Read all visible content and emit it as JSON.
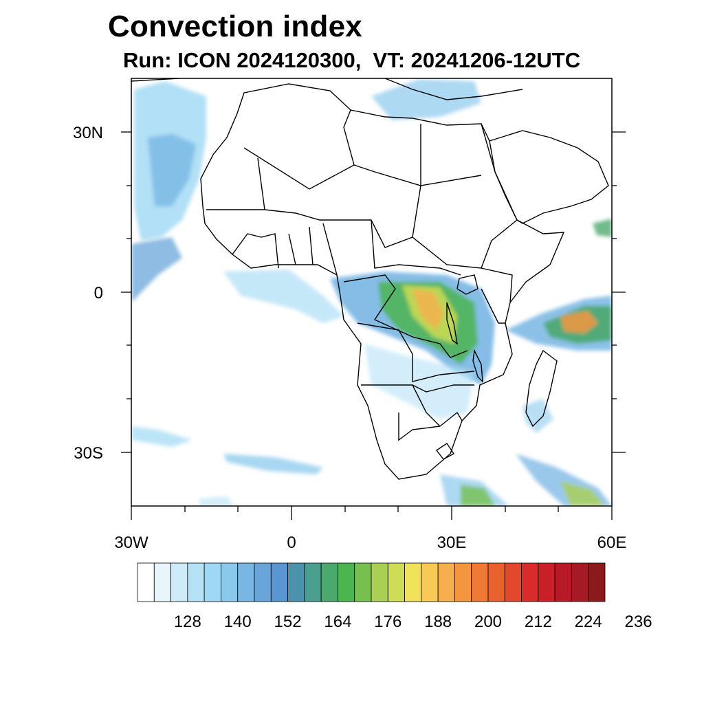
{
  "header": {
    "title": "Convection index",
    "subtitle": "Run: ICON 2024120300,  VT: 20241206-12UTC"
  },
  "map": {
    "lon_range": [
      -30,
      60
    ],
    "lat_range": [
      -40,
      40
    ],
    "y_labels": [
      "30N",
      "0",
      "30S"
    ],
    "x_labels": [
      "30W",
      "0",
      "30E",
      "60E"
    ]
  },
  "colorbar": {
    "colors": [
      "#ffffff",
      "#e8f6fc",
      "#cdebf8",
      "#b6e2f6",
      "#9fd8f4",
      "#8bc9ec",
      "#78b6e3",
      "#6aa5da",
      "#5a97d2",
      "#4b93ad",
      "#4b9f8e",
      "#4ca96e",
      "#4bb54f",
      "#77bf4f",
      "#a9cf53",
      "#cfdc56",
      "#f0e25a",
      "#f9c956",
      "#f7ae4f",
      "#f49640",
      "#ee7a35",
      "#e8612f",
      "#e2482b",
      "#d92c2a",
      "#c81f29",
      "#b61a27",
      "#a51a24",
      "#8c1a1c"
    ],
    "tick_labels": [
      "128",
      "140",
      "152",
      "164",
      "176",
      "188",
      "200",
      "212",
      "224",
      "236"
    ]
  }
}
